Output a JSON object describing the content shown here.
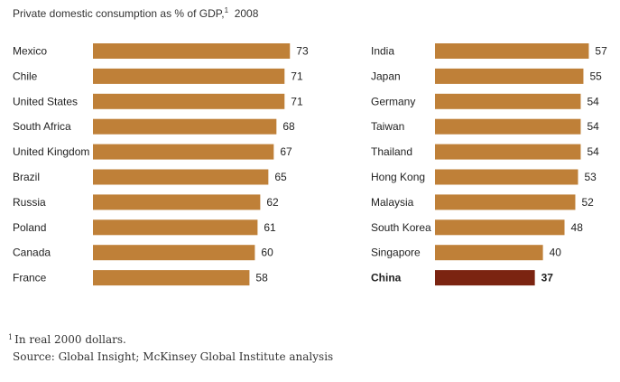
{
  "chart_data": {
    "type": "bar",
    "orientation": "horizontal",
    "title": "Private domestic consumption as % of GDP,",
    "title_footnote_mark": "1",
    "title_year": "2008",
    "xlim": [
      0,
      100
    ],
    "panels": [
      {
        "categories": [
          "Mexico",
          "Chile",
          "United States",
          "South Africa",
          "United Kingdom",
          "Brazil",
          "Russia",
          "Poland",
          "Canada",
          "France"
        ],
        "values": [
          73,
          71,
          71,
          68,
          67,
          65,
          62,
          61,
          60,
          58
        ],
        "highlight": []
      },
      {
        "categories": [
          "India",
          "Japan",
          "Germany",
          "Taiwan",
          "Thailand",
          "Hong Kong",
          "Malaysia",
          "South Korea",
          "Singapore",
          "China"
        ],
        "values": [
          57,
          55,
          54,
          54,
          54,
          53,
          52,
          48,
          40,
          37
        ],
        "highlight": [
          "China"
        ]
      }
    ],
    "colors": {
      "bar": "#bf8038",
      "highlight": "#7b2411",
      "text": "#222222"
    }
  },
  "footnote": {
    "mark": "1",
    "text": "In real 2000 dollars."
  },
  "source": "Source: Global Insight; McKinsey Global Institute analysis"
}
